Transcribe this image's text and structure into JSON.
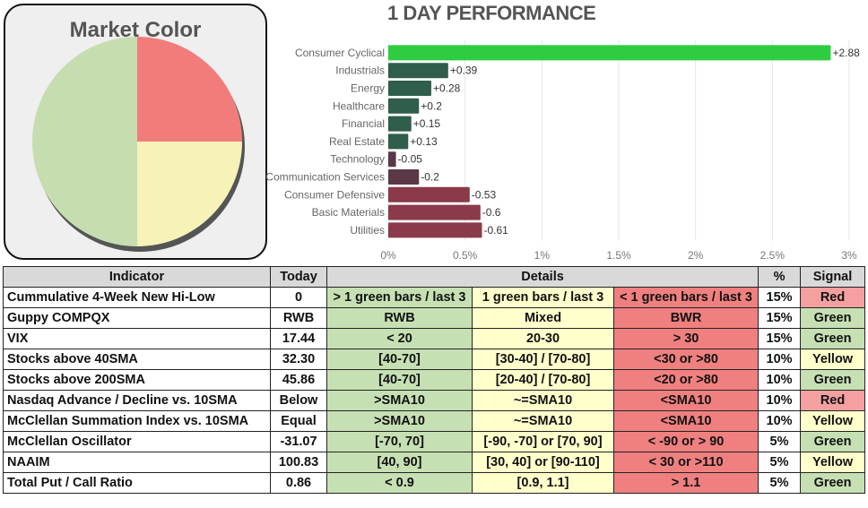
{
  "market_color": {
    "title": "Market Color",
    "slices": [
      {
        "name": "green",
        "value": 50,
        "color": "#c6ddb0"
      },
      {
        "name": "red",
        "value": 25,
        "color": "#f27c7c"
      },
      {
        "name": "yellow",
        "value": 25,
        "color": "#f6f2b8"
      }
    ]
  },
  "chart_data": {
    "type": "bar",
    "orientation": "horizontal",
    "title": "1 DAY PERFORMANCE",
    "categories": [
      "Consumer Cyclical",
      "Industrials",
      "Energy",
      "Healthcare",
      "Financial",
      "Real Estate",
      "Technology",
      "Communication Services",
      "Consumer Defensive",
      "Basic Materials",
      "Utilities"
    ],
    "values": [
      2.88,
      0.39,
      0.28,
      0.2,
      0.15,
      0.13,
      -0.05,
      -0.2,
      -0.53,
      -0.6,
      -0.61
    ],
    "value_labels": [
      "+2.88",
      "+0.39",
      "+0.28",
      "+0.2",
      "+0.15",
      "+0.13",
      "-0.05",
      "-0.2",
      "-0.53",
      "-0.6",
      "-0.61"
    ],
    "xticks": [
      0,
      0.5,
      1,
      1.5,
      2,
      2.5,
      3
    ],
    "xtick_labels": [
      "0%",
      "0.5%",
      "1%",
      "1.5%",
      "2%",
      "2.5%",
      "3%"
    ],
    "xlim": [
      0,
      3
    ],
    "colors": {
      "top": "#2ecc40",
      "positive": "#2f5e4a",
      "negative": "#8a3a48",
      "neutral": "#5a3848"
    }
  },
  "table": {
    "headers": {
      "indicator": "Indicator",
      "today": "Today",
      "details": "Details",
      "pct": "%",
      "signal": "Signal"
    },
    "rows": [
      {
        "name": "Cummulative 4-Week New Hi-Low",
        "today": "0",
        "green": "> 1 green bars / last 3",
        "yellow": "1 green bars / last 3",
        "red": "< 1 green bars / last 3",
        "pct": "15%",
        "signal": "Red"
      },
      {
        "name": "Guppy COMPQX",
        "today": "RWB",
        "green": "RWB",
        "yellow": "Mixed",
        "red": "BWR",
        "pct": "15%",
        "signal": "Green"
      },
      {
        "name": "VIX",
        "today": "17.44",
        "green": "< 20",
        "yellow": "20-30",
        "red": "> 30",
        "pct": "15%",
        "signal": "Green"
      },
      {
        "name": "Stocks above 40SMA",
        "today": "32.30",
        "green": "[40-70]",
        "yellow": "[30-40] / [70-80]",
        "red": "<30 or >80",
        "pct": "10%",
        "signal": "Yellow"
      },
      {
        "name": "Stocks above 200SMA",
        "today": "45.86",
        "green": "[40-70]",
        "yellow": "[20-40] / [70-80]",
        "red": "<20 or >80",
        "pct": "10%",
        "signal": "Green"
      },
      {
        "name": "Nasdaq Advance / Decline vs. 10SMA",
        "today": "Below",
        "green": ">SMA10",
        "yellow": "~=SMA10",
        "red": "<SMA10",
        "pct": "10%",
        "signal": "Red"
      },
      {
        "name": "McClellan Summation Index vs. 10SMA",
        "today": "Equal",
        "green": ">SMA10",
        "yellow": "~=SMA10",
        "red": "<SMA10",
        "pct": "10%",
        "signal": "Yellow"
      },
      {
        "name": "McClellan Oscillator",
        "today": "-31.07",
        "green": "[-70,  70]",
        "yellow": "[-90, -70] or [70, 90]",
        "red": "< -90 or > 90",
        "pct": "5%",
        "signal": "Green"
      },
      {
        "name": "NAAIM",
        "today": "100.83",
        "green": "[40, 90]",
        "yellow": "[30, 40] or [90-110]",
        "red": "< 30 or >110",
        "pct": "5%",
        "signal": "Yellow"
      },
      {
        "name": "Total Put / Call Ratio",
        "today": "0.86",
        "green": "< 0.9",
        "yellow": "[0.9, 1.1]",
        "red": "> 1.1",
        "pct": "5%",
        "signal": "Green"
      }
    ]
  }
}
